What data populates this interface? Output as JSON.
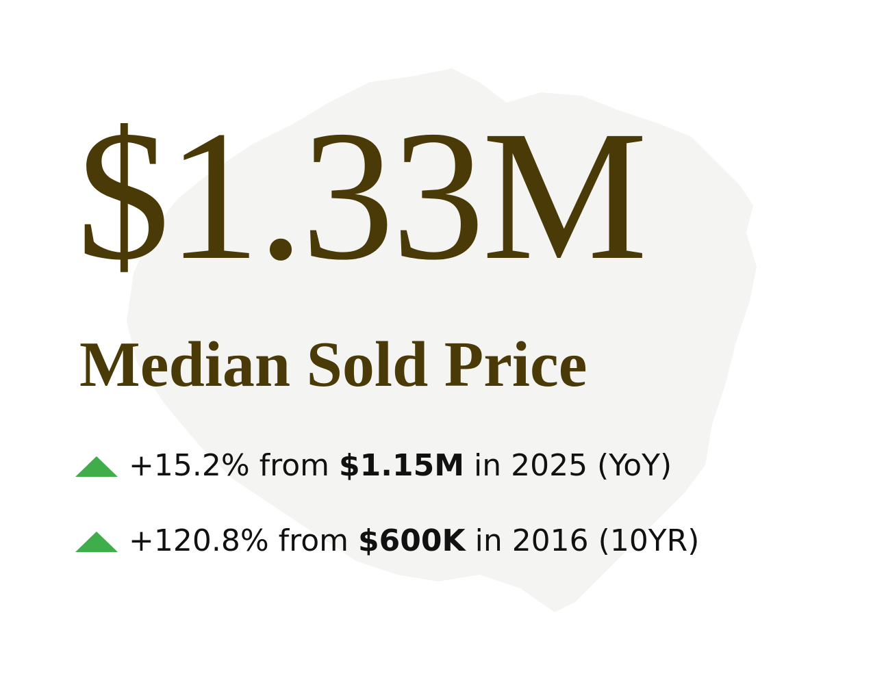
{
  "headline": {
    "value": "$1.33M",
    "label": "Median Sold Price"
  },
  "changes": [
    {
      "lead": "+15.2% from",
      "base": "$1.15M",
      "trail": "in 2025 (YoY)"
    },
    {
      "lead": "+120.8% from",
      "base": "$600K",
      "trail": "in 2016 (10YR)"
    }
  ]
}
